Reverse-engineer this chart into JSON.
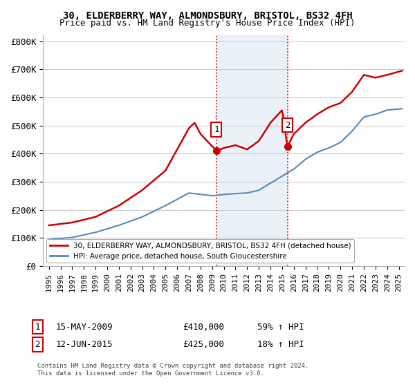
{
  "title1": "30, ELDERBERRY WAY, ALMONDSBURY, BRISTOL, BS32 4FH",
  "title2": "Price paid vs. HM Land Registry's House Price Index (HPI)",
  "ylabel_ticks": [
    "£0",
    "£100K",
    "£200K",
    "£300K",
    "£400K",
    "£500K",
    "£600K",
    "£700K",
    "£800K"
  ],
  "ytick_values": [
    0,
    100000,
    200000,
    300000,
    400000,
    500000,
    600000,
    700000,
    800000
  ],
  "ylim": [
    0,
    820000
  ],
  "xlim_start": 1994.5,
  "xlim_end": 2025.5,
  "xtick_years": [
    1995,
    1996,
    1997,
    1998,
    1999,
    2000,
    2001,
    2002,
    2003,
    2004,
    2005,
    2006,
    2007,
    2008,
    2009,
    2010,
    2011,
    2012,
    2013,
    2014,
    2015,
    2016,
    2017,
    2018,
    2019,
    2020,
    2021,
    2022,
    2023,
    2024,
    2025
  ],
  "red_line_color": "#cc0000",
  "blue_line_color": "#5588bb",
  "sale1_x": 2009.37,
  "sale1_y": 410000,
  "sale2_x": 2015.45,
  "sale2_y": 425000,
  "legend_red": "30, ELDERBERRY WAY, ALMONDSBURY, BRISTOL, BS32 4FH (detached house)",
  "legend_blue": "HPI: Average price, detached house, South Gloucestershire",
  "footer": "Contains HM Land Registry data © Crown copyright and database right 2024.\nThis data is licensed under the Open Government Licence v3.0.",
  "shaded_x_start": 2009.37,
  "shaded_x_end": 2015.45,
  "background_color": "#ffffff",
  "grid_color": "#cccccc",
  "sale1_date": "15-MAY-2009",
  "sale1_price": "£410,000",
  "sale1_hpi": "59% ↑ HPI",
  "sale2_date": "12-JUN-2015",
  "sale2_price": "£425,000",
  "sale2_hpi": "18% ↑ HPI"
}
